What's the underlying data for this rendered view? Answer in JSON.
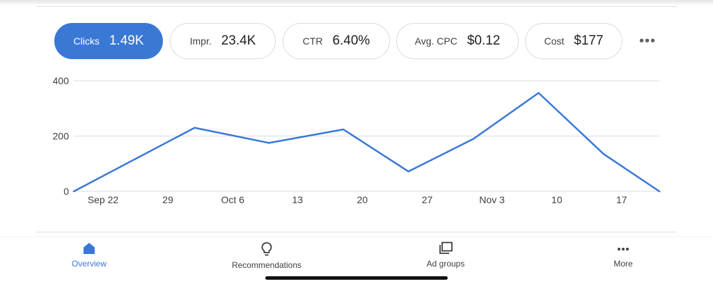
{
  "metrics": [
    {
      "label": "Clicks",
      "value": "1.49K",
      "active": true
    },
    {
      "label": "Impr.",
      "value": "23.4K",
      "active": false
    },
    {
      "label": "CTR",
      "value": "6.40%",
      "active": false
    },
    {
      "label": "Avg. CPC",
      "value": "$0.12",
      "active": false
    },
    {
      "label": "Cost",
      "value": "$177",
      "active": false
    }
  ],
  "more_metrics_icon": "more-horizontal",
  "colors": {
    "accent": "#3a78d6",
    "line": "#3a78d6",
    "grid": "#dadce0"
  },
  "chart_data": {
    "type": "line",
    "series": [
      {
        "values": [
          0,
          230,
          175,
          224,
          72,
          190,
          356,
          135,
          0
        ]
      }
    ],
    "x": [
      "Sep 19",
      "Oct 2",
      "Oct 10",
      "Oct 18",
      "Oct 25",
      "Nov 1",
      "Nov 8",
      "Nov 15",
      "Nov 21"
    ],
    "xticks": [
      "Sep 22",
      "29",
      "Oct 6",
      "13",
      "20",
      "27",
      "Nov 3",
      "10",
      "17"
    ],
    "yticks": [
      "0",
      "200",
      "400"
    ],
    "ylim": [
      0,
      400
    ],
    "grid": true
  },
  "nav": [
    {
      "label": "Overview",
      "icon": "home-icon",
      "active": true
    },
    {
      "label": "Recommendations",
      "icon": "lightbulb-icon",
      "active": false
    },
    {
      "label": "Ad groups",
      "icon": "ad-groups-icon",
      "active": false
    },
    {
      "label": "More",
      "icon": "more-icon",
      "active": false
    }
  ]
}
